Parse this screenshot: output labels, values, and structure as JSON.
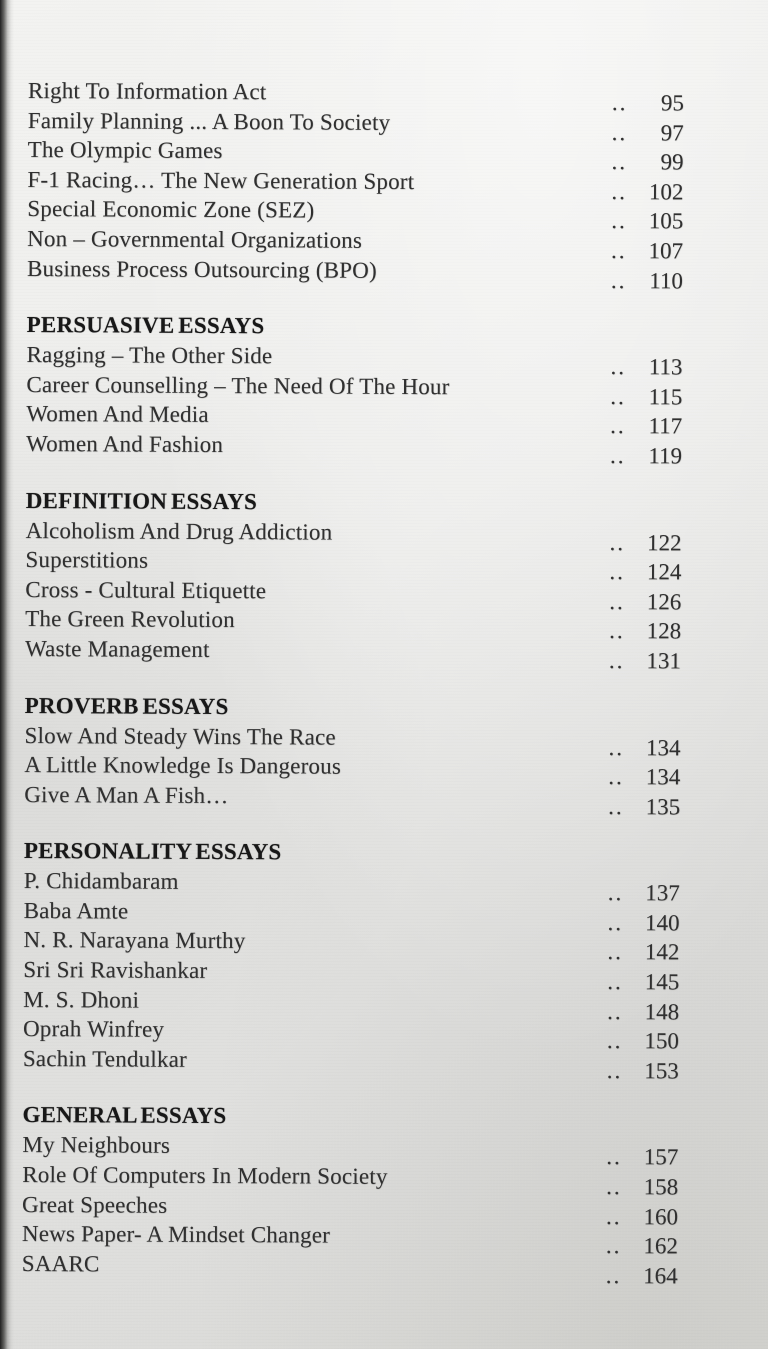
{
  "leader": "..",
  "sections": [
    {
      "heading": "",
      "items": [
        {
          "title": "Right To Information Act",
          "page": "95"
        },
        {
          "title": "Family Planning ... A Boon To Society",
          "page": "97"
        },
        {
          "title": "The Olympic Games",
          "page": "99"
        },
        {
          "title": "F-1 Racing… The New Generation Sport",
          "page": "102"
        },
        {
          "title": "Special Economic Zone (SEZ)",
          "page": "105"
        },
        {
          "title": "Non – Governmental Organizations",
          "page": "107"
        },
        {
          "title": "Business Process Outsourcing (BPO)",
          "page": "110"
        }
      ]
    },
    {
      "heading": "PERSUASIVE ESSAYS",
      "items": [
        {
          "title": "Ragging – The Other Side",
          "page": "113"
        },
        {
          "title": "Career Counselling – The Need Of The Hour",
          "page": "115"
        },
        {
          "title": "Women And Media",
          "page": "117"
        },
        {
          "title": "Women And Fashion",
          "page": "119"
        }
      ]
    },
    {
      "heading": "DEFINITION ESSAYS",
      "items": [
        {
          "title": "Alcoholism And Drug Addiction",
          "page": "122"
        },
        {
          "title": "Superstitions",
          "page": "124"
        },
        {
          "title": "Cross - Cultural Etiquette",
          "page": "126"
        },
        {
          "title": "The Green Revolution",
          "page": "128"
        },
        {
          "title": "Waste Management",
          "page": "131"
        }
      ]
    },
    {
      "heading": "PROVERB ESSAYS",
      "items": [
        {
          "title": "Slow And Steady Wins The Race",
          "page": "134"
        },
        {
          "title": "A Little Knowledge Is Dangerous",
          "page": "134"
        },
        {
          "title": "Give A Man A Fish…",
          "page": "135"
        }
      ]
    },
    {
      "heading": "PERSONALITY ESSAYS",
      "items": [
        {
          "title": "P. Chidambaram",
          "page": "137"
        },
        {
          "title": "Baba Amte",
          "page": "140"
        },
        {
          "title": "N. R. Narayana Murthy",
          "page": "142"
        },
        {
          "title": "Sri Sri Ravishankar",
          "page": "145"
        },
        {
          "title": "M. S. Dhoni",
          "page": "148"
        },
        {
          "title": "Oprah Winfrey",
          "page": "150"
        },
        {
          "title": "Sachin Tendulkar",
          "page": "153"
        }
      ]
    },
    {
      "heading": "GENERAL ESSAYS",
      "items": [
        {
          "title": "My Neighbours",
          "page": "157"
        },
        {
          "title": "Role Of Computers In Modern Society",
          "page": "158"
        },
        {
          "title": "Great Speeches",
          "page": "160"
        },
        {
          "title": "News Paper- A Mindset Changer",
          "page": "162"
        },
        {
          "title": "SAARC",
          "page": "164"
        }
      ]
    }
  ]
}
